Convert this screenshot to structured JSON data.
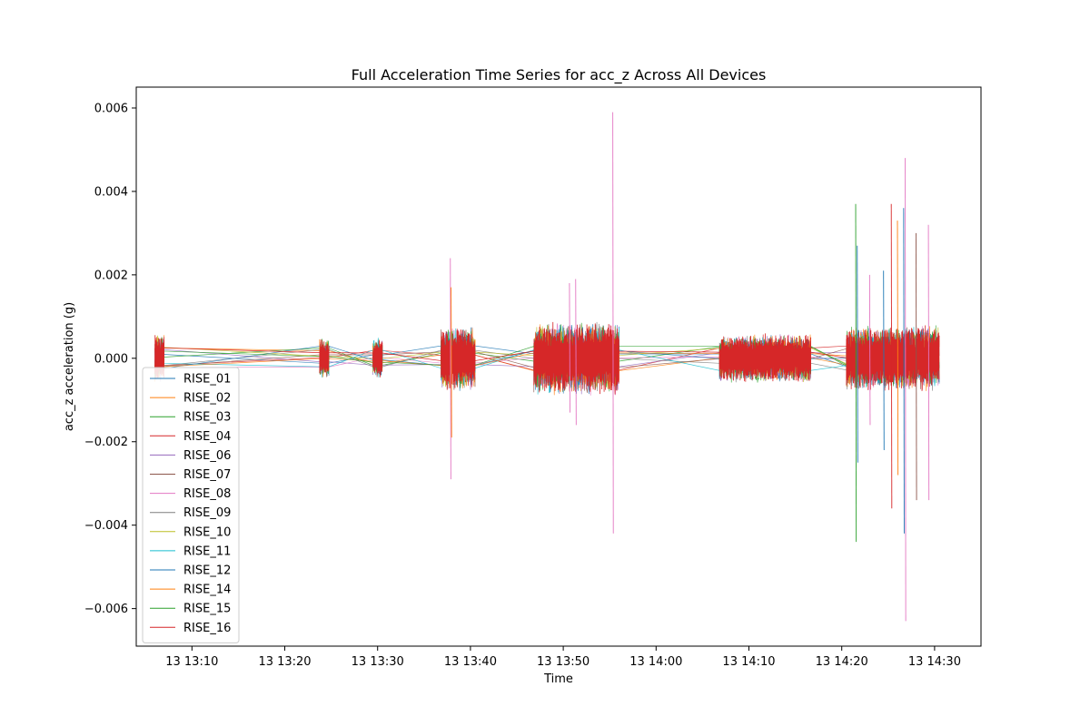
{
  "chart_data": {
    "type": "line",
    "title": "Full Acceleration Time Series for acc_z Across All Devices",
    "xlabel": "Time",
    "ylabel": "acc_z acceleration (g)",
    "x_axis": {
      "ticks": [
        "13 13:10",
        "13 13:20",
        "13 13:30",
        "13 13:40",
        "13 13:50",
        "13 14:00",
        "13 14:10",
        "13 14:20",
        "13 14:30"
      ],
      "range": [
        "13:04",
        "13:35 +1h"
      ]
    },
    "ylim": [
      -0.0069,
      0.0065
    ],
    "y_ticks": [
      {
        "value": 0.006,
        "label": "0.006"
      },
      {
        "value": 0.004,
        "label": "0.004"
      },
      {
        "value": 0.002,
        "label": "0.002"
      },
      {
        "value": 0.0,
        "label": "0.000"
      },
      {
        "value": -0.002,
        "label": "−0.002"
      },
      {
        "value": -0.004,
        "label": "−0.004"
      },
      {
        "value": -0.006,
        "label": "−0.006"
      }
    ],
    "legend_position": "lower-left",
    "grid": false,
    "bursts": [
      {
        "start": "13:06:00",
        "end": "13:07:00",
        "amplitude": 0.0006
      },
      {
        "start": "13:23:45",
        "end": "13:24:45",
        "amplitude": 0.0005
      },
      {
        "start": "13:29:30",
        "end": "13:30:30",
        "amplitude": 0.0005
      },
      {
        "start": "13:36:50",
        "end": "13:40:30",
        "amplitude": 0.0008
      },
      {
        "start": "13:46:50",
        "end": "13:56:00",
        "amplitude": 0.0009
      },
      {
        "start": "14:06:50",
        "end": "14:16:40",
        "amplitude": 0.0006
      },
      {
        "start": "14:20:30",
        "end": "14:30:30",
        "amplitude": 0.0008
      }
    ],
    "spikes": [
      {
        "time": "13:37:50",
        "min": -0.0029,
        "max": 0.0024,
        "series": "RISE_08"
      },
      {
        "time": "13:37:55",
        "min": -0.0019,
        "max": 0.0017,
        "series": "RISE_14"
      },
      {
        "time": "13:50:40",
        "min": -0.0013,
        "max": 0.0018,
        "series": "RISE_08"
      },
      {
        "time": "13:51:20",
        "min": -0.0016,
        "max": 0.0019,
        "series": "RISE_08"
      },
      {
        "time": "13:55:20",
        "min": -0.0042,
        "max": 0.0059,
        "series": "RISE_08"
      },
      {
        "time": "14:21:30",
        "min": -0.0044,
        "max": 0.0037,
        "series": "RISE_15"
      },
      {
        "time": "14:21:40",
        "min": -0.0025,
        "max": 0.0027,
        "series": "RISE_12"
      },
      {
        "time": "14:23:00",
        "min": -0.0016,
        "max": 0.002,
        "series": "RISE_08"
      },
      {
        "time": "14:24:30",
        "min": -0.0022,
        "max": 0.0021,
        "series": "RISE_12"
      },
      {
        "time": "14:25:20",
        "min": -0.0036,
        "max": 0.0037,
        "series": "RISE_16"
      },
      {
        "time": "14:26:00",
        "min": -0.0028,
        "max": 0.0033,
        "series": "RISE_14"
      },
      {
        "time": "14:26:40",
        "min": -0.0042,
        "max": 0.0036,
        "series": "RISE_12"
      },
      {
        "time": "14:26:50",
        "min": -0.0063,
        "max": 0.0048,
        "series": "RISE_08"
      },
      {
        "time": "14:28:00",
        "min": -0.0034,
        "max": 0.003,
        "series": "RISE_07"
      },
      {
        "time": "14:29:20",
        "min": -0.0034,
        "max": 0.0032,
        "series": "RISE_08"
      }
    ],
    "series": [
      {
        "name": "RISE_01",
        "color": "#1f77b4"
      },
      {
        "name": "RISE_02",
        "color": "#ff7f0e"
      },
      {
        "name": "RISE_03",
        "color": "#2ca02c"
      },
      {
        "name": "RISE_04",
        "color": "#d62728"
      },
      {
        "name": "RISE_06",
        "color": "#9467bd"
      },
      {
        "name": "RISE_07",
        "color": "#8c564b"
      },
      {
        "name": "RISE_08",
        "color": "#e377c2"
      },
      {
        "name": "RISE_09",
        "color": "#7f7f7f"
      },
      {
        "name": "RISE_10",
        "color": "#bcbd22"
      },
      {
        "name": "RISE_11",
        "color": "#17becf"
      },
      {
        "name": "RISE_12",
        "color": "#1f77b4"
      },
      {
        "name": "RISE_14",
        "color": "#ff7f0e"
      },
      {
        "name": "RISE_15",
        "color": "#2ca02c"
      },
      {
        "name": "RISE_16",
        "color": "#d62728"
      }
    ]
  }
}
